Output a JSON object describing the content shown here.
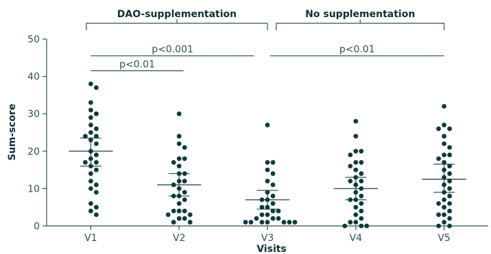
{
  "chart_data": {
    "type": "scatter",
    "xlabel": "Visits",
    "ylabel": "Sum-score",
    "ylim": [
      0,
      50
    ],
    "yticks": [
      0,
      10,
      20,
      30,
      40,
      50
    ],
    "categories": [
      "V1",
      "V2",
      "V3",
      "V4",
      "V5"
    ],
    "colors": {
      "points": "#0e3b3f",
      "lines": "#2f4f4f",
      "text": "#2f4f4f"
    },
    "groups": [
      {
        "label": "DAO-supplementation",
        "from": 0,
        "to": 2
      },
      {
        "label": "No supplementation",
        "from": 2,
        "to": 4
      }
    ],
    "significance": [
      {
        "label": "p<0.001",
        "from": 0,
        "to": 2,
        "y": 45.5
      },
      {
        "label": "p<0.01",
        "from": 0,
        "to": 1,
        "y": 41.5
      },
      {
        "label": "p<0.01",
        "from": 2,
        "to": 4,
        "y": 45.5
      }
    ],
    "summary": [
      {
        "category": "V1",
        "mean": 20,
        "ci_low": 16,
        "ci_high": 23.5
      },
      {
        "category": "V2",
        "mean": 11,
        "ci_low": 8,
        "ci_high": 14
      },
      {
        "category": "V3",
        "mean": 7,
        "ci_low": 4.5,
        "ci_high": 9.5
      },
      {
        "category": "V4",
        "mean": 10,
        "ci_low": 7,
        "ci_high": 13
      },
      {
        "category": "V5",
        "mean": 12.5,
        "ci_low": 9,
        "ci_high": 16.5
      }
    ],
    "series": [
      {
        "category": "V1",
        "values": [
          38,
          37,
          33,
          31,
          30,
          29,
          27,
          26,
          25,
          24,
          24,
          23,
          22,
          20,
          19,
          18,
          17,
          17,
          16,
          15,
          14,
          12,
          11,
          10,
          9,
          6,
          5,
          4,
          3
        ]
      },
      {
        "category": "V2",
        "values": [
          30,
          24,
          22,
          21,
          18,
          18,
          17,
          16,
          14,
          14,
          12,
          12,
          11,
          10,
          9,
          8,
          8,
          7,
          6,
          4,
          4,
          4,
          3,
          3,
          2,
          2,
          1,
          1
        ]
      },
      {
        "category": "V3",
        "values": [
          27,
          17,
          17,
          15,
          14,
          12,
          11,
          9,
          8,
          7,
          7,
          6,
          5,
          5,
          4,
          4,
          3,
          3,
          2,
          2,
          2,
          1,
          1,
          1,
          1,
          1,
          1,
          1
        ]
      },
      {
        "category": "V4",
        "values": [
          28,
          24,
          20,
          20,
          19,
          17,
          17,
          16,
          15,
          14,
          13,
          12,
          12,
          11,
          10,
          9,
          8,
          7,
          7,
          6,
          5,
          4,
          3,
          2,
          1,
          1,
          0,
          0,
          0
        ]
      },
      {
        "category": "V5",
        "values": [
          32,
          27,
          26,
          26,
          24,
          22,
          21,
          19,
          19,
          18,
          17,
          16,
          15,
          14,
          13,
          12,
          11,
          10,
          9,
          8,
          7,
          6,
          6,
          5,
          4,
          3,
          3,
          2,
          1,
          0,
          0
        ]
      }
    ]
  }
}
